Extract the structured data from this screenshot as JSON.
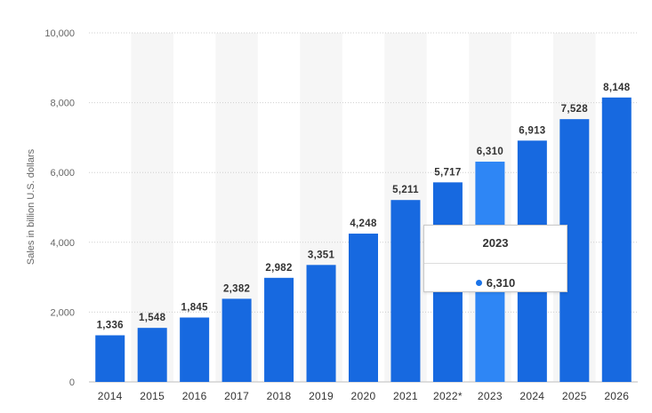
{
  "chart_data": {
    "type": "bar",
    "categories": [
      "2014",
      "2015",
      "2016",
      "2017",
      "2018",
      "2019",
      "2020",
      "2021",
      "2022*",
      "2023",
      "2024",
      "2025",
      "2026"
    ],
    "values": [
      1336,
      1548,
      1845,
      2382,
      2982,
      3351,
      4248,
      5211,
      5717,
      6310,
      6913,
      7528,
      8148
    ],
    "value_labels": [
      "1,336",
      "1,548",
      "1,845",
      "2,382",
      "2,982",
      "3,351",
      "4,248",
      "5,211",
      "5,717",
      "6,310",
      "6,913",
      "7,528",
      "8,148"
    ],
    "ylabel": "Sales in billion U.S. dollars",
    "xlabel": "",
    "ylim": [
      0,
      10000
    ],
    "yticks": [
      0,
      2000,
      4000,
      6000,
      8000,
      10000
    ],
    "ytick_labels": [
      "0",
      "2,000",
      "4,000",
      "6,000",
      "8,000",
      "10,000"
    ],
    "grid": true,
    "highlighted_category": "2023",
    "colors": {
      "bar": "#1769e0",
      "bar_highlight": "#2e86f5",
      "grid": "#cfcfcf",
      "band": "#f6f6f6"
    }
  },
  "tooltip": {
    "title": "2023",
    "value": "6,310"
  }
}
